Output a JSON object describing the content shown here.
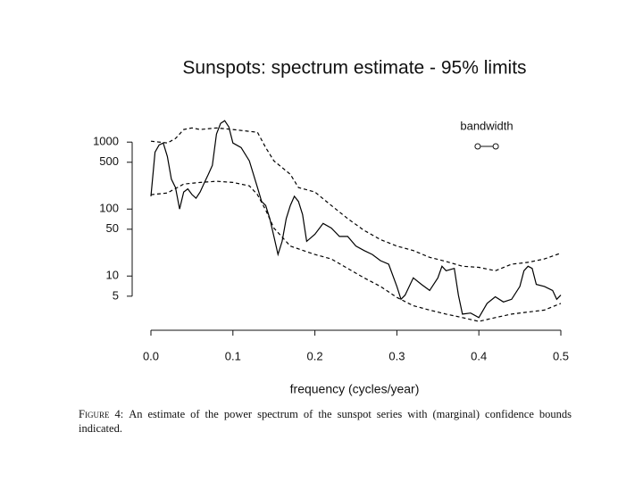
{
  "chart_data": {
    "type": "line",
    "title": "Sunspots: spectrum estimate - 95% limits",
    "x_label": "frequency (cycles/year)",
    "log_y": true,
    "xlim": [
      0,
      0.5
    ],
    "xticks": [
      {
        "value": 0,
        "label": "0.0"
      },
      0.1,
      0.2,
      0.3,
      0.4,
      0.5
    ],
    "ylim": [
      1.55,
      2450
    ],
    "yticks": [
      5,
      10,
      50,
      100,
      500,
      1000
    ],
    "series": [
      {
        "color": "#000000",
        "dashed": false,
        "x": [
          0,
          0.005,
          0.01,
          0.015,
          0.02,
          0.025,
          0.03,
          0.035,
          0.04,
          0.045,
          0.05,
          0.055,
          0.06,
          0.065,
          0.07,
          0.075,
          0.08,
          0.085,
          0.09,
          0.095,
          0.1,
          0.11,
          0.12,
          0.13,
          0.135,
          0.14,
          0.145,
          0.15,
          0.155,
          0.16,
          0.165,
          0.17,
          0.175,
          0.18,
          0.185,
          0.19,
          0.2,
          0.21,
          0.22,
          0.23,
          0.24,
          0.25,
          0.26,
          0.27,
          0.28,
          0.29,
          0.3,
          0.305,
          0.31,
          0.32,
          0.33,
          0.34,
          0.35,
          0.355,
          0.36,
          0.37,
          0.375,
          0.38,
          0.39,
          0.4,
          0.41,
          0.42,
          0.43,
          0.44,
          0.45,
          0.455,
          0.46,
          0.465,
          0.47,
          0.48,
          0.49,
          0.495,
          0.5
        ],
        "values": [
          155,
          710,
          910,
          970,
          610,
          280,
          210,
          100,
          180,
          200,
          165,
          145,
          180,
          245,
          330,
          450,
          1320,
          1900,
          2090,
          1690,
          970,
          830,
          525,
          210,
          130,
          113,
          72,
          39,
          21,
          33,
          72,
          113,
          155,
          130,
          83,
          33,
          42,
          61,
          52,
          39,
          39,
          28,
          24,
          21,
          17,
          15,
          7,
          4.5,
          5.2,
          9.4,
          7.5,
          6.1,
          9.4,
          14,
          12,
          13,
          5.2,
          2.7,
          2.8,
          2.4,
          3.9,
          4.9,
          4.1,
          4.5,
          7,
          12,
          14,
          13,
          7.5,
          7,
          6.1,
          4.5,
          5.2
        ]
      },
      {
        "color": "#000000",
        "dashed": true,
        "x": [
          0,
          0.02,
          0.03,
          0.04,
          0.05,
          0.06,
          0.08,
          0.1,
          0.13,
          0.14,
          0.15,
          0.17,
          0.18,
          0.2,
          0.22,
          0.24,
          0.26,
          0.28,
          0.3,
          0.32,
          0.34,
          0.36,
          0.38,
          0.4,
          0.42,
          0.44,
          0.46,
          0.48,
          0.5
        ],
        "values": [
          1030,
          970,
          1130,
          1540,
          1630,
          1540,
          1630,
          1540,
          1400,
          830,
          525,
          330,
          210,
          180,
          113,
          72,
          48,
          35,
          28,
          24,
          19,
          16.5,
          14,
          13.5,
          12,
          15,
          16,
          18,
          22
        ]
      },
      {
        "color": "#000000",
        "dashed": true,
        "x": [
          0,
          0.02,
          0.04,
          0.06,
          0.08,
          0.1,
          0.12,
          0.13,
          0.14,
          0.15,
          0.17,
          0.2,
          0.22,
          0.24,
          0.26,
          0.28,
          0.3,
          0.32,
          0.34,
          0.36,
          0.38,
          0.4,
          0.42,
          0.44,
          0.46,
          0.48,
          0.5
        ],
        "values": [
          164,
          174,
          236,
          250,
          260,
          250,
          222,
          164,
          97,
          52,
          28,
          21,
          18,
          13,
          9.4,
          7,
          4.8,
          3.6,
          3.1,
          2.7,
          2.4,
          2.1,
          2.4,
          2.7,
          2.9,
          3.1,
          3.9
        ]
      }
    ],
    "bandwidth": {
      "label": "bandwidth",
      "width": 0.022
    },
    "caption": {
      "label": "Figure 4:",
      "text": "An estimate of the power spectrum of the sunspot series with (marginal) confidence bounds indicated."
    }
  }
}
